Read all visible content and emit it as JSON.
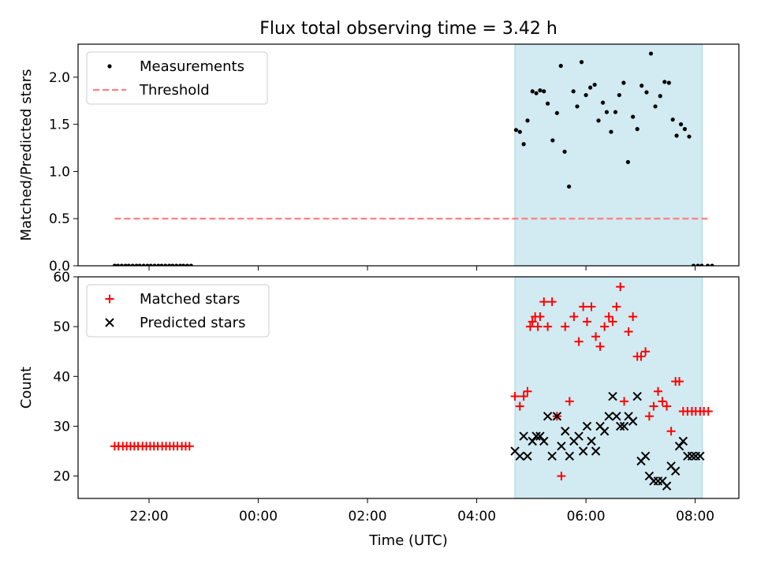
{
  "figure": {
    "title": "Flux total observing time = 3.42 h",
    "xlabel": "Time (UTC)",
    "xticks": [
      "22:00",
      "00:00",
      "02:00",
      "04:00",
      "06:00",
      "08:00"
    ]
  },
  "colors": {
    "shade": "#add8e6",
    "threshold": "#ff7f7f",
    "matched": "#ff0000",
    "predicted": "#000000",
    "measurements": "#000000"
  },
  "chart_data": [
    {
      "type": "scatter",
      "panel": "top",
      "xlabel": "",
      "ylabel": "Matched/Predicted stars",
      "x_unit": "hours since 00:00 UTC",
      "xlim": [
        -3.3,
        8.8
      ],
      "ylim": [
        0,
        2.35
      ],
      "yticks": [
        "0.0",
        "0.5",
        "1.0",
        "1.5",
        "2.0"
      ],
      "legend_position": "top-left",
      "shaded_interval": [
        4.7,
        8.13
      ],
      "series": [
        {
          "name": "Measurements",
          "marker": "dot",
          "x": [
            -2.63,
            -2.57,
            -2.5,
            -2.43,
            -2.37,
            -2.3,
            -2.23,
            -2.17,
            -2.1,
            -2.03,
            -1.97,
            -1.9,
            -1.83,
            -1.77,
            -1.7,
            -1.63,
            -1.57,
            -1.5,
            -1.43,
            -1.37,
            -1.3,
            -1.23,
            4.72,
            4.79,
            4.86,
            4.93,
            5.02,
            5.09,
            5.16,
            5.23,
            5.3,
            5.39,
            5.47,
            5.54,
            5.61,
            5.69,
            5.77,
            5.84,
            5.92,
            6.0,
            6.08,
            6.16,
            6.23,
            6.31,
            6.38,
            6.46,
            6.54,
            6.61,
            6.69,
            6.77,
            6.86,
            6.94,
            7.02,
            7.11,
            7.19,
            7.27,
            7.36,
            7.44,
            7.52,
            7.59,
            7.66,
            7.74,
            7.81,
            7.89,
            7.97,
            8.05,
            8.12,
            8.23,
            8.31
          ],
          "y": [
            0,
            0,
            0,
            0,
            0,
            0,
            0,
            0,
            0,
            0,
            0,
            0,
            0,
            0,
            0,
            0,
            0,
            0,
            0,
            0,
            0,
            0,
            1.44,
            1.42,
            1.29,
            1.54,
            1.85,
            1.83,
            1.86,
            1.85,
            1.72,
            1.33,
            1.62,
            2.12,
            1.21,
            0.84,
            1.85,
            1.69,
            2.16,
            1.81,
            1.89,
            1.92,
            1.54,
            1.73,
            1.63,
            1.42,
            1.63,
            1.81,
            1.94,
            1.1,
            1.58,
            1.45,
            1.91,
            1.84,
            2.25,
            1.69,
            1.8,
            1.95,
            1.94,
            1.55,
            1.38,
            1.5,
            1.45,
            1.37,
            0,
            0,
            0,
            0,
            0
          ]
        },
        {
          "name": "Threshold",
          "line_style": "dashed",
          "x": [
            -2.63,
            8.23
          ],
          "y": [
            0.5,
            0.5
          ]
        }
      ]
    },
    {
      "type": "scatter",
      "panel": "bottom",
      "xlabel": "Time (UTC)",
      "ylabel": "Count",
      "x_unit": "hours since 00:00 UTC",
      "xlim": [
        -3.3,
        8.8
      ],
      "ylim": [
        15.5,
        60
      ],
      "yticks": [
        "20",
        "30",
        "40",
        "50",
        "60"
      ],
      "legend_position": "top-left",
      "shaded_interval": [
        4.7,
        8.13
      ],
      "series": [
        {
          "name": "Matched stars",
          "marker": "plus",
          "x": [
            -2.63,
            -2.56,
            -2.48,
            -2.41,
            -2.34,
            -2.27,
            -2.2,
            -2.12,
            -2.05,
            -1.98,
            -1.91,
            -1.84,
            -1.76,
            -1.69,
            -1.62,
            -1.55,
            -1.48,
            -1.4,
            -1.33,
            -1.26,
            4.7,
            4.79,
            4.86,
            4.93,
            4.98,
            5.02,
            5.07,
            5.12,
            5.16,
            5.23,
            5.3,
            5.38,
            5.47,
            5.55,
            5.62,
            5.7,
            5.78,
            5.87,
            5.95,
            6.02,
            6.1,
            6.18,
            6.26,
            6.34,
            6.42,
            6.49,
            6.56,
            6.63,
            6.7,
            6.78,
            6.86,
            6.94,
            7.01,
            7.09,
            7.16,
            7.24,
            7.32,
            7.4,
            7.48,
            7.56,
            7.64,
            7.71,
            7.78,
            7.86,
            7.94,
            8.01,
            8.09,
            8.16,
            8.24
          ],
          "y": [
            26,
            26,
            26,
            26,
            26,
            26,
            26,
            26,
            26,
            26,
            26,
            26,
            26,
            26,
            26,
            26,
            26,
            26,
            26,
            26,
            36,
            34,
            36,
            37,
            50,
            51,
            52,
            50,
            52,
            55,
            50,
            55,
            32,
            20,
            50,
            35,
            52,
            47,
            54,
            51,
            54,
            48,
            46,
            50,
            52,
            51,
            54,
            58,
            35,
            49,
            52,
            44,
            44,
            45,
            32,
            34,
            37,
            35,
            34,
            29,
            39,
            39,
            33,
            33,
            33,
            33,
            33,
            33,
            33
          ]
        },
        {
          "name": "Predicted stars",
          "marker": "x",
          "x": [
            4.7,
            4.79,
            4.86,
            4.93,
            5.02,
            5.09,
            5.16,
            5.23,
            5.3,
            5.38,
            5.47,
            5.55,
            5.62,
            5.7,
            5.78,
            5.87,
            5.95,
            6.02,
            6.1,
            6.18,
            6.26,
            6.34,
            6.42,
            6.49,
            6.56,
            6.63,
            6.7,
            6.78,
            6.86,
            6.94,
            7.01,
            7.09,
            7.16,
            7.24,
            7.32,
            7.4,
            7.48,
            7.56,
            7.64,
            7.71,
            7.78,
            7.86,
            7.94,
            8.01,
            8.09
          ],
          "y": [
            25,
            24,
            28,
            24,
            27,
            28,
            28,
            27,
            32,
            24,
            32,
            26,
            29,
            24,
            27,
            28,
            25,
            30,
            27,
            25,
            30,
            29,
            32,
            36,
            32,
            30,
            30,
            32,
            31,
            36,
            23,
            24,
            20,
            19,
            19,
            19,
            18,
            22,
            21,
            26,
            27,
            24,
            24,
            24,
            24
          ]
        }
      ]
    }
  ]
}
